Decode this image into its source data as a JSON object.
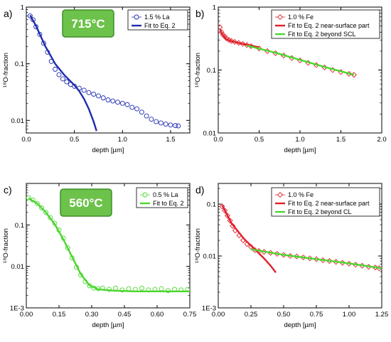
{
  "colors": {
    "blue": "#1f2bb0",
    "red": "#e0202a",
    "green": "#4bd62e",
    "temp_box": "#6cc24a"
  },
  "chart_data": [
    {
      "type": "scatter",
      "panel_label": "a)",
      "temperature": "715°C",
      "xlabel": "depth [µm]",
      "ylabel": "¹⁸O-fraction",
      "xlim": [
        0,
        1.7
      ],
      "ylim": [
        0.006,
        1
      ],
      "yscale": "log",
      "xticks": [
        0.0,
        0.5,
        1.0,
        1.5
      ],
      "xtick_labels": [
        "0.0",
        "0.5",
        "1.0",
        "1.5"
      ],
      "yticks": [
        0.01,
        0.1,
        1
      ],
      "ytick_labels": [
        "0.01",
        "0.1",
        "1"
      ],
      "legend_position": "top-right",
      "series": [
        {
          "name": "1.5 % La",
          "kind": "scatter",
          "marker": "circle",
          "color": "#1f2bb0",
          "x": [
            0.04,
            0.07,
            0.1,
            0.14,
            0.18,
            0.22,
            0.26,
            0.3,
            0.34,
            0.38,
            0.42,
            0.46,
            0.5,
            0.55,
            0.6,
            0.65,
            0.7,
            0.75,
            0.8,
            0.85,
            0.9,
            0.95,
            1.0,
            1.05,
            1.1,
            1.15,
            1.2,
            1.25,
            1.3,
            1.35,
            1.4,
            1.45,
            1.5,
            1.55,
            1.58
          ],
          "y": [
            0.7,
            0.6,
            0.45,
            0.33,
            0.23,
            0.16,
            0.11,
            0.08,
            0.064,
            0.054,
            0.048,
            0.043,
            0.04,
            0.037,
            0.034,
            0.031,
            0.029,
            0.027,
            0.025,
            0.023,
            0.022,
            0.021,
            0.02,
            0.019,
            0.017,
            0.016,
            0.014,
            0.012,
            0.0105,
            0.0095,
            0.009,
            0.0086,
            0.0083,
            0.0081,
            0.008
          ]
        },
        {
          "name": "Fit to Eq. 2",
          "kind": "line",
          "color": "#1f2bb0",
          "x": [
            0.04,
            0.1,
            0.2,
            0.3,
            0.4,
            0.5,
            0.55,
            0.6,
            0.65,
            0.7,
            0.73
          ],
          "y": [
            0.72,
            0.47,
            0.2,
            0.1,
            0.062,
            0.042,
            0.033,
            0.024,
            0.016,
            0.0095,
            0.0065
          ]
        }
      ]
    },
    {
      "type": "scatter",
      "panel_label": "b)",
      "xlabel": "depth [µm]",
      "ylabel": "¹⁸O-fraction",
      "xlim": [
        0,
        2.0
      ],
      "ylim": [
        0.01,
        1
      ],
      "yscale": "log",
      "xticks": [
        0.0,
        0.5,
        1.0,
        1.5,
        2.0
      ],
      "xtick_labels": [
        "0.0",
        "0.5",
        "1.0",
        "1.5",
        "2.0"
      ],
      "yticks": [
        0.01,
        0.1,
        1
      ],
      "ytick_labels": [
        "0.01",
        "0.1",
        "1"
      ],
      "legend_position": "top-right",
      "series": [
        {
          "name": "1.0 % Fe",
          "kind": "scatter",
          "marker": "diamond",
          "color": "#e0202a",
          "x": [
            0.02,
            0.04,
            0.06,
            0.08,
            0.1,
            0.13,
            0.16,
            0.2,
            0.25,
            0.3,
            0.35,
            0.4,
            0.5,
            0.6,
            0.7,
            0.8,
            0.9,
            1.0,
            1.1,
            1.2,
            1.3,
            1.4,
            1.5,
            1.6,
            1.66
          ],
          "y": [
            0.48,
            0.4,
            0.36,
            0.34,
            0.32,
            0.3,
            0.29,
            0.28,
            0.27,
            0.26,
            0.25,
            0.24,
            0.22,
            0.2,
            0.185,
            0.17,
            0.155,
            0.142,
            0.13,
            0.12,
            0.11,
            0.1,
            0.093,
            0.087,
            0.084
          ]
        },
        {
          "name": "Fit to Eq. 2 near-surface part",
          "kind": "line",
          "color": "#e0202a",
          "x": [
            0.02,
            0.05,
            0.1,
            0.15,
            0.2,
            0.3,
            0.4,
            0.5
          ],
          "y": [
            0.45,
            0.37,
            0.31,
            0.29,
            0.28,
            0.26,
            0.245,
            0.23
          ]
        },
        {
          "name": "Fit to Eq. 2 beyond SCL",
          "kind": "line",
          "color": "#4bd62e",
          "x": [
            0.35,
            0.7,
            1.0,
            1.3,
            1.66
          ],
          "y": [
            0.245,
            0.188,
            0.145,
            0.112,
            0.084
          ]
        }
      ]
    },
    {
      "type": "scatter",
      "panel_label": "c)",
      "temperature": "560°C",
      "xlabel": "depth [µm]",
      "ylabel": "¹⁸O-fraction",
      "xlim": [
        0,
        0.75
      ],
      "ylim": [
        0.001,
        1
      ],
      "yscale": "log",
      "xticks": [
        0.0,
        0.15,
        0.3,
        0.45,
        0.6,
        0.75
      ],
      "xtick_labels": [
        "0.00",
        "0.15",
        "0.30",
        "0.45",
        "0.60",
        "0.75"
      ],
      "yticks": [
        0.001,
        0.01,
        0.1
      ],
      "ytick_labels": [
        "1E-3",
        "0.01",
        "0.1"
      ],
      "legend_position": "top-right",
      "series": [
        {
          "name": "0.5 % La",
          "kind": "scatter",
          "marker": "circle",
          "color": "#4bd62e",
          "x": [
            0.01,
            0.03,
            0.05,
            0.07,
            0.09,
            0.11,
            0.13,
            0.15,
            0.17,
            0.19,
            0.21,
            0.23,
            0.25,
            0.27,
            0.29,
            0.31,
            0.33,
            0.35,
            0.38,
            0.41,
            0.44,
            0.47,
            0.5,
            0.53,
            0.56,
            0.59,
            0.62,
            0.65,
            0.68,
            0.71,
            0.74
          ],
          "y": [
            0.45,
            0.4,
            0.33,
            0.26,
            0.2,
            0.15,
            0.11,
            0.075,
            0.048,
            0.028,
            0.016,
            0.0095,
            0.0062,
            0.0043,
            0.0034,
            0.003,
            0.0029,
            0.003,
            0.0028,
            0.003,
            0.0027,
            0.0029,
            0.0028,
            0.003,
            0.0027,
            0.0028,
            0.0029,
            0.0026,
            0.0028,
            0.0027,
            0.0028
          ]
        },
        {
          "name": "Fit to Eq. 2",
          "kind": "line",
          "color": "#4bd62e",
          "x": [
            0.01,
            0.05,
            0.09,
            0.13,
            0.17,
            0.21,
            0.25,
            0.29,
            0.33,
            0.4,
            0.5,
            0.6,
            0.75
          ],
          "y": [
            0.44,
            0.33,
            0.2,
            0.105,
            0.045,
            0.017,
            0.0065,
            0.0035,
            0.0028,
            0.0026,
            0.0025,
            0.0025,
            0.0025
          ]
        }
      ]
    },
    {
      "type": "scatter",
      "panel_label": "d)",
      "xlabel": "depth [µm]",
      "ylabel": "¹⁸O-fraction",
      "xlim": [
        0,
        1.25
      ],
      "ylim": [
        0.001,
        0.25
      ],
      "yscale": "log",
      "xticks": [
        0.0,
        0.25,
        0.5,
        0.75,
        1.0,
        1.25
      ],
      "xtick_labels": [
        "0.00",
        "0.25",
        "0.50",
        "0.75",
        "1.00",
        "1.25"
      ],
      "yticks": [
        0.001,
        0.01,
        0.1
      ],
      "ytick_labels": [
        "1E-3",
        "0.01",
        "0.1"
      ],
      "legend_position": "top-right",
      "series": [
        {
          "name": "1.0 % Fe",
          "kind": "scatter",
          "marker": "diamond",
          "color": "#e0202a",
          "x": [
            0.03,
            0.05,
            0.07,
            0.09,
            0.11,
            0.13,
            0.16,
            0.19,
            0.22,
            0.25,
            0.28,
            0.31,
            0.35,
            0.4,
            0.45,
            0.5,
            0.55,
            0.6,
            0.65,
            0.7,
            0.75,
            0.8,
            0.85,
            0.9,
            0.95,
            1.0,
            1.05,
            1.1,
            1.15,
            1.2,
            1.23
          ],
          "y": [
            0.09,
            0.075,
            0.06,
            0.048,
            0.038,
            0.031,
            0.025,
            0.02,
            0.017,
            0.015,
            0.013,
            0.0125,
            0.012,
            0.0115,
            0.011,
            0.0105,
            0.01,
            0.0098,
            0.0094,
            0.009,
            0.0087,
            0.0083,
            0.008,
            0.0077,
            0.0074,
            0.0071,
            0.0068,
            0.0065,
            0.0062,
            0.006,
            0.0058
          ]
        },
        {
          "name": "Fit to Eq. 2 near-surface part",
          "kind": "line",
          "color": "#e0202a",
          "x": [
            0.03,
            0.1,
            0.2,
            0.3,
            0.35,
            0.4,
            0.44
          ],
          "y": [
            0.095,
            0.043,
            0.021,
            0.012,
            0.009,
            0.0065,
            0.0048
          ]
        },
        {
          "name": "Fit to Eq. 2 beyond CL",
          "kind": "line",
          "color": "#4bd62e",
          "x": [
            0.25,
            0.5,
            0.75,
            1.0,
            1.25
          ],
          "y": [
            0.0135,
            0.0105,
            0.0087,
            0.0072,
            0.0058
          ]
        }
      ]
    }
  ]
}
